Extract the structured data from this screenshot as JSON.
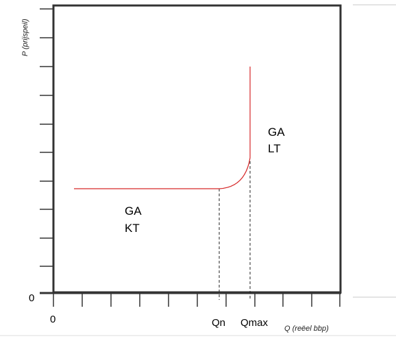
{
  "axes": {
    "y_title": "P (prijspeil)",
    "x_title": "Q (reëel bbp)",
    "y_zero": "0",
    "x_zero": "0"
  },
  "markers": {
    "qn": "Qn",
    "qmax": "Qmax"
  },
  "curves": {
    "ga_lt": {
      "line1": "GA",
      "line2": "LT"
    },
    "ga_kt": {
      "line1": "GA",
      "line2": "KT"
    }
  },
  "colors": {
    "curve": "#d62728",
    "frame": "#333333",
    "guide": "#222222"
  }
}
